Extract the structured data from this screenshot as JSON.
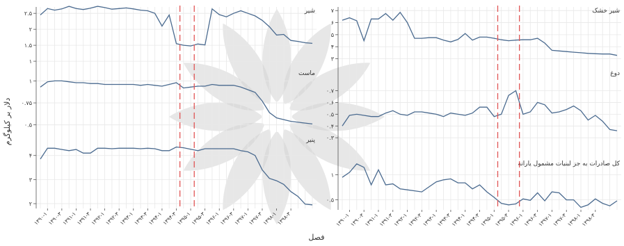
{
  "chart_data": [
    {
      "type": "line",
      "title": "",
      "ylabel": "دلار بر کیلوگرم",
      "xlabel": "فصل",
      "x_ticks": [
        "۱۳۹۰-۱",
        "۱۳۹۰-۳",
        "۱۳۹۱-۱",
        "۱۳۹۱-۳",
        "۱۳۹۲-۱",
        "۱۳۹۲-۳",
        "۱۳۹۳-۱",
        "۱۳۹۳-۳",
        "۱۳۹۴-۱",
        "۱۳۹۴-۳",
        "۱۳۹۵-۱",
        "۱۳۹۵-۳",
        "۱۳۹۶-۱",
        "۱۳۹۶-۳",
        "۱۳۹۷-۱",
        "۱۳۹۷-۳",
        "۱۳۹۸-۱",
        "۱۳۹۸-۳"
      ],
      "vlines": [
        19.5,
        21.5
      ],
      "grid": true,
      "series": [
        {
          "name": "شیر",
          "ylim": [
            0.85,
            2.7
          ],
          "yticks": [
            {
              "v": 1,
              "t": "۱"
            },
            {
              "v": 1.5,
              "t": "۱.۵"
            },
            {
              "v": 2,
              "t": "۲"
            },
            {
              "v": 2.5,
              "t": "۲.۵"
            }
          ],
          "values": [
            2.45,
            2.65,
            2.6,
            2.64,
            2.72,
            2.65,
            2.62,
            2.66,
            2.72,
            2.68,
            2.63,
            2.65,
            2.67,
            2.64,
            2.6,
            2.58,
            2.5,
            2.1,
            2.45,
            1.55,
            1.5,
            1.48,
            1.54,
            1.51,
            2.64,
            2.46,
            2.39,
            2.5,
            2.58,
            2.5,
            2.42,
            2.28,
            2.08,
            1.82,
            1.84,
            1.65,
            1.62,
            1.58,
            1.56
          ]
        },
        {
          "name": "ماست",
          "ylim": [
            0.45,
            1.13
          ],
          "yticks": [
            {
              "v": 0.5,
              "t": "۰.۵"
            },
            {
              "v": 0.75,
              "t": "۰.۷۵"
            },
            {
              "v": 1,
              "t": "۱"
            }
          ],
          "values": [
            0.93,
            0.99,
            1.0,
            1.0,
            0.99,
            0.98,
            0.98,
            0.97,
            0.97,
            0.96,
            0.96,
            0.96,
            0.96,
            0.96,
            0.95,
            0.96,
            0.95,
            0.94,
            0.96,
            0.98,
            0.92,
            0.93,
            0.94,
            0.94,
            0.96,
            0.95,
            0.95,
            0.95,
            0.93,
            0.9,
            0.87,
            0.77,
            0.64,
            0.58,
            0.56,
            0.54,
            0.53,
            0.52,
            0.51
          ]
        },
        {
          "name": "پنیر",
          "ylim": [
            1.8,
            4.8
          ],
          "yticks": [
            {
              "v": 2,
              "t": "۲"
            },
            {
              "v": 3,
              "t": "۳"
            },
            {
              "v": 4,
              "t": "۴"
            }
          ],
          "values": [
            3.85,
            4.3,
            4.3,
            4.25,
            4.2,
            4.25,
            4.1,
            4.1,
            4.3,
            4.3,
            4.28,
            4.3,
            4.3,
            4.3,
            4.28,
            4.3,
            4.28,
            4.2,
            4.2,
            4.35,
            4.32,
            4.26,
            4.2,
            4.28,
            4.28,
            4.28,
            4.28,
            4.28,
            4.2,
            4.15,
            4.0,
            3.4,
            3.05,
            2.95,
            2.8,
            2.5,
            2.3,
            1.98,
            1.95
          ]
        }
      ]
    },
    {
      "type": "line",
      "title": "",
      "ylabel": "",
      "xlabel": "",
      "x_ticks": [
        "۱۳۹۰-۱",
        "۱۳۹۰-۳",
        "۱۳۹۱-۱",
        "۱۳۹۱-۳",
        "۱۳۹۲-۱",
        "۱۳۹۲-۳",
        "۱۳۹۳-۱",
        "۱۳۹۳-۳",
        "۱۳۹۴-۱",
        "۱۳۹۴-۳",
        "۱۳۹۵-۱",
        "۱۳۹۵-۳",
        "۱۳۹۶-۱",
        "۱۳۹۶-۳",
        "۱۳۹۷-۱",
        "۱۳۹۷-۳",
        "۱۳۹۸-۱",
        "۱۳۹۸-۳"
      ],
      "vlines": [
        21.5,
        24.5
      ],
      "grid": true,
      "series": [
        {
          "name": "شیر خشک",
          "ylim": [
            2.4,
            7.3
          ],
          "yticks": [
            {
              "v": 3,
              "t": "۳"
            },
            {
              "v": 4,
              "t": "۴"
            },
            {
              "v": 5,
              "t": "۵"
            },
            {
              "v": 6,
              "t": "۶"
            },
            {
              "v": 7,
              "t": "۷"
            }
          ],
          "values": [
            6.2,
            6.4,
            6.15,
            4.5,
            6.3,
            6.3,
            6.75,
            6.2,
            6.85,
            6.0,
            4.7,
            4.7,
            4.75,
            4.75,
            4.55,
            4.4,
            4.6,
            5.1,
            4.55,
            4.8,
            4.8,
            4.7,
            4.58,
            4.5,
            4.55,
            4.58,
            4.58,
            4.7,
            4.3,
            3.7,
            3.65,
            3.6,
            3.55,
            3.5,
            3.45,
            3.42,
            3.4,
            3.4,
            3.28
          ]
        },
        {
          "name": "دوغ",
          "ylim": [
            0.26,
            0.88
          ],
          "yticks": [
            {
              "v": 0.3,
              "t": "۰.۳"
            },
            {
              "v": 0.4,
              "t": "۰.۴"
            },
            {
              "v": 0.5,
              "t": "۰.۵"
            },
            {
              "v": 0.6,
              "t": "۰.۶"
            },
            {
              "v": 0.7,
              "t": "۰.۷"
            }
          ],
          "values": [
            0.4,
            0.49,
            0.5,
            0.49,
            0.48,
            0.48,
            0.51,
            0.53,
            0.5,
            0.49,
            0.52,
            0.52,
            0.51,
            0.5,
            0.48,
            0.51,
            0.5,
            0.49,
            0.51,
            0.56,
            0.56,
            0.48,
            0.5,
            0.66,
            0.7,
            0.5,
            0.52,
            0.6,
            0.58,
            0.51,
            0.52,
            0.54,
            0.57,
            0.53,
            0.45,
            0.49,
            0.44,
            0.37,
            0.36
          ]
        },
        {
          "name": "کل صادرات به جز لبنیات مشمول یارانه",
          "ylim": [
            0.3,
            1.3
          ],
          "yticks": [
            {
              "v": 0.5,
              "t": "۰.۵"
            },
            {
              "v": 1,
              "t": "۱"
            }
          ],
          "values": [
            0.95,
            1.05,
            1.22,
            1.15,
            0.8,
            1.1,
            0.8,
            0.82,
            0.72,
            0.7,
            0.68,
            0.66,
            0.76,
            0.86,
            0.9,
            0.92,
            0.84,
            0.84,
            0.72,
            0.8,
            0.66,
            0.55,
            0.43,
            0.4,
            0.42,
            0.52,
            0.49,
            0.64,
            0.48,
            0.66,
            0.64,
            0.5,
            0.5,
            0.35,
            0.4,
            0.52,
            0.43,
            0.38,
            0.48
          ]
        }
      ]
    }
  ]
}
